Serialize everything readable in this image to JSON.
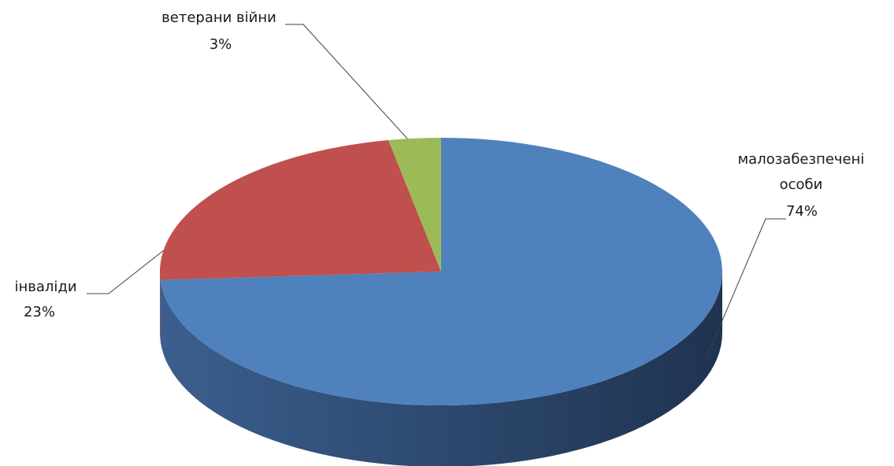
{
  "chart_data": {
    "type": "pie",
    "title": "",
    "slices": [
      {
        "label": "малозабезпечені особи",
        "label_lines": [
          "малозабезпечені",
          "особи"
        ],
        "value": 74,
        "value_label": "74%",
        "color": "#4f81bd"
      },
      {
        "label": "інваліди",
        "label_lines": [
          "інваліди"
        ],
        "value": 23,
        "value_label": "23%",
        "color": "#c0504d"
      },
      {
        "label": "ветерани війни",
        "label_lines": [
          "ветерани війни"
        ],
        "value": 3,
        "value_label": "3%",
        "color": "#9bbb59"
      }
    ],
    "legend": "none",
    "style": "3d"
  }
}
